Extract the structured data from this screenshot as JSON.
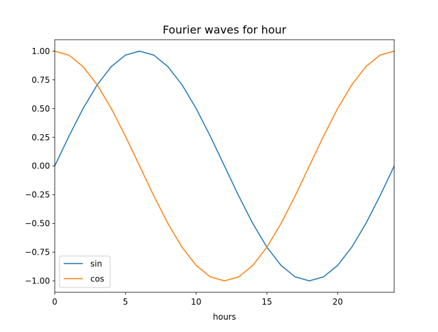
{
  "chart_data": {
    "type": "line",
    "title": "Fourier waves for hour",
    "xlabel": "hours",
    "ylabel": "",
    "xlim": [
      0,
      24
    ],
    "ylim": [
      -1.1,
      1.1
    ],
    "x_ticks": [
      0,
      5,
      10,
      15,
      20
    ],
    "x_tick_labels": [
      "0",
      "5",
      "10",
      "15",
      "20"
    ],
    "y_ticks": [
      -1.0,
      -0.75,
      -0.5,
      -0.25,
      0.0,
      0.25,
      0.5,
      0.75,
      1.0
    ],
    "y_tick_labels": [
      "−1.00",
      "−0.75",
      "−0.50",
      "−0.25",
      "0.00",
      "0.25",
      "0.50",
      "0.75",
      "1.00"
    ],
    "grid": false,
    "legend_position": "lower-left",
    "x": [
      0,
      1,
      2,
      3,
      4,
      5,
      6,
      7,
      8,
      9,
      10,
      11,
      12,
      13,
      14,
      15,
      16,
      17,
      18,
      19,
      20,
      21,
      22,
      23,
      24
    ],
    "series": [
      {
        "name": "sin",
        "color": "#1f77b4",
        "values": [
          0.0,
          0.259,
          0.5,
          0.707,
          0.866,
          0.966,
          1.0,
          0.966,
          0.866,
          0.707,
          0.5,
          0.259,
          0.0,
          -0.259,
          -0.5,
          -0.707,
          -0.866,
          -0.966,
          -1.0,
          -0.966,
          -0.866,
          -0.707,
          -0.5,
          -0.259,
          0.0
        ]
      },
      {
        "name": "cos",
        "color": "#ff7f0e",
        "values": [
          1.0,
          0.966,
          0.866,
          0.707,
          0.5,
          0.259,
          0.0,
          -0.259,
          -0.5,
          -0.707,
          -0.866,
          -0.966,
          -1.0,
          -0.966,
          -0.866,
          -0.707,
          -0.5,
          -0.259,
          0.0,
          0.259,
          0.5,
          0.707,
          0.866,
          0.966,
          1.0
        ]
      }
    ]
  }
}
